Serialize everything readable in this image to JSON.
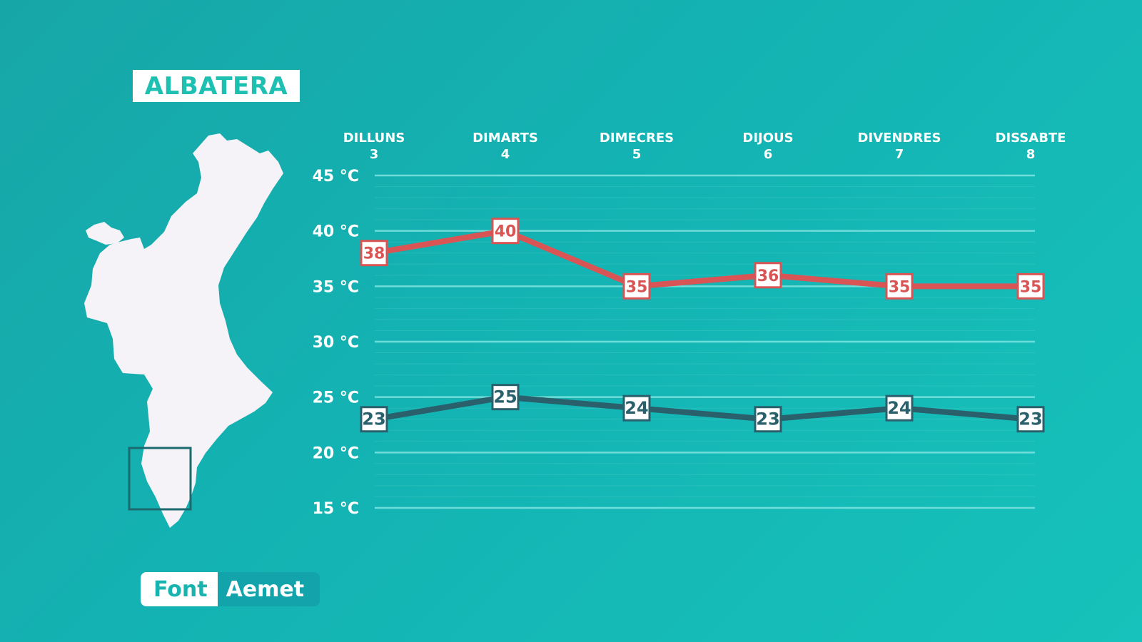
{
  "location": "ALBATERA",
  "source": {
    "label": "Font",
    "value": "Aemet"
  },
  "colors": {
    "max": "#d95555",
    "min": "#2a5f6c",
    "grid": "#7fe3df",
    "background": "#14b3b3"
  },
  "chart_data": {
    "type": "line",
    "categories": [
      {
        "day": "DILLUNS",
        "date": "3"
      },
      {
        "day": "DIMARTS",
        "date": "4"
      },
      {
        "day": "DIMECRES",
        "date": "5"
      },
      {
        "day": "DIJOUS",
        "date": "6"
      },
      {
        "day": "DIVENDRES",
        "date": "7"
      },
      {
        "day": "DISSABTE",
        "date": "8"
      }
    ],
    "series": [
      {
        "key": "max",
        "values": [
          38,
          40,
          35,
          36,
          35,
          35
        ]
      },
      {
        "key": "min",
        "values": [
          23,
          25,
          24,
          23,
          24,
          23
        ]
      }
    ],
    "yticks": [
      "45 °C",
      "40 °C",
      "35 °C",
      "30 °C",
      "25 °C",
      "20 °C",
      "15 °C"
    ],
    "ytick_values": [
      45,
      40,
      35,
      30,
      25,
      20,
      15
    ],
    "ylim": [
      15,
      45
    ],
    "grid": true
  }
}
